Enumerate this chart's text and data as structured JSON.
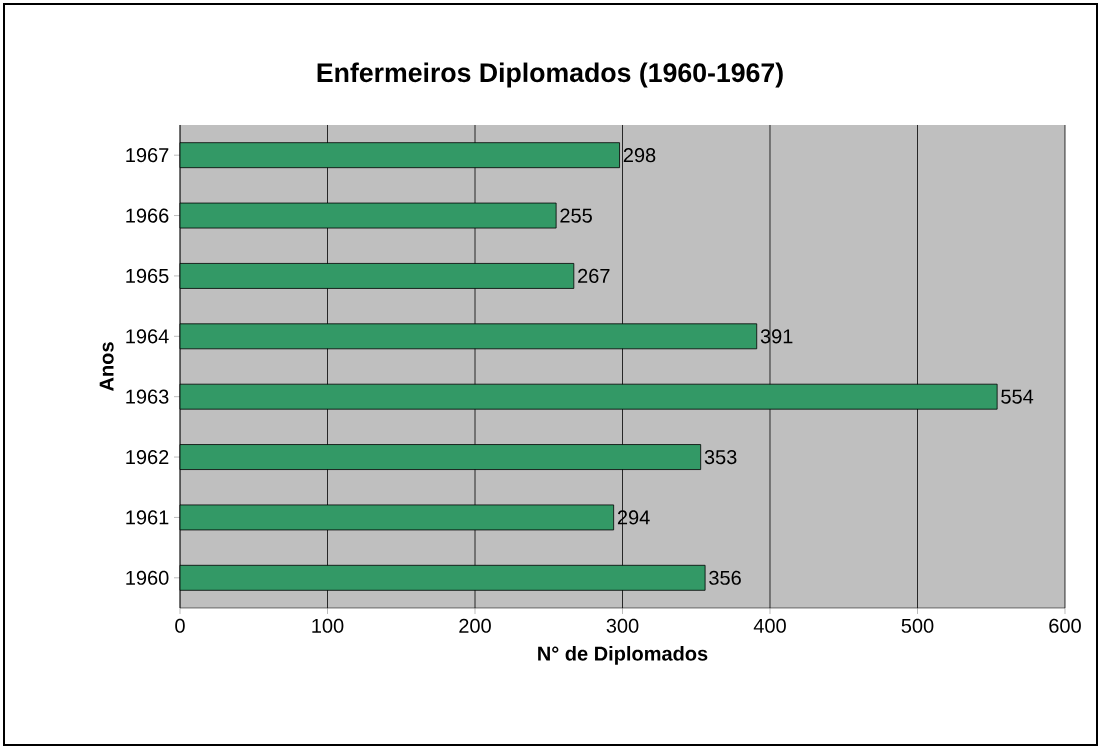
{
  "chart_data": {
    "type": "bar",
    "orientation": "horizontal",
    "title": "Enfermeiros Diplomados (1960-1967)",
    "xlabel": "N° de Diplomados",
    "ylabel": "Anos",
    "categories": [
      "1967",
      "1966",
      "1965",
      "1964",
      "1963",
      "1962",
      "1961",
      "1960"
    ],
    "values": [
      298,
      255,
      267,
      391,
      554,
      353,
      294,
      356
    ],
    "color": "#339966",
    "data_labels": true,
    "grid": "x",
    "xlim": [
      0,
      600
    ],
    "xticks": [
      0,
      100,
      200,
      300,
      400,
      500,
      600
    ]
  }
}
